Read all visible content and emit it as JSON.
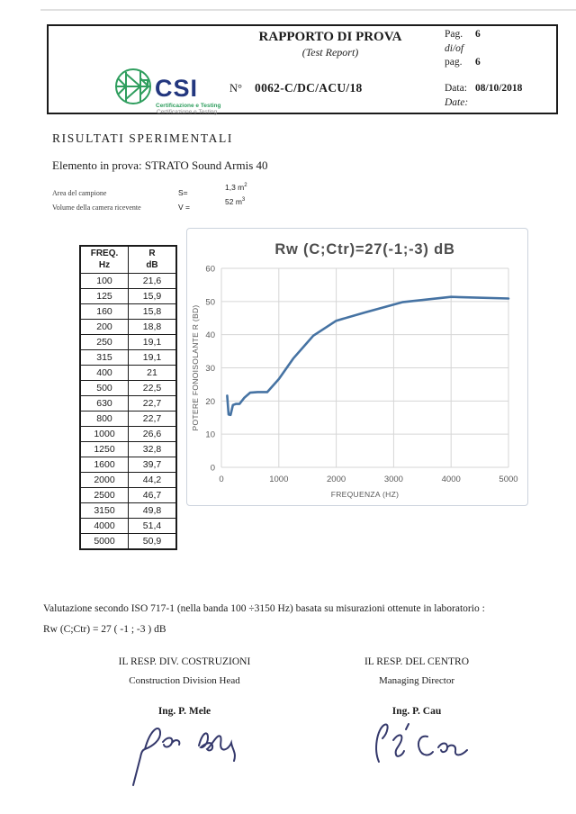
{
  "header": {
    "logo": {
      "brand": "CSI",
      "tagline1": "Certificazione e Testing",
      "tagline2": "Certificazione  e Testing"
    },
    "title": "RAPPORTO DI PROVA",
    "subtitle": "(Test Report)",
    "number_label": "N°",
    "number": "0062-C/DC/ACU/18",
    "pag_label": "Pag.",
    "pag_value": "6",
    "diof_label": "di/of",
    "pag2_label": "pag.",
    "pag2_value": "6",
    "data_label": "Data:",
    "data_value": "08/10/2018",
    "date_label": "Date:"
  },
  "section": {
    "heading": "RISULTATI SPERIMENTALI",
    "element_line": "Elemento in prova: STRATO Sound Armis 40",
    "area_label": "Area del campione",
    "area_symbol": "S=",
    "area_value": "1,3 m",
    "area_sup": "2",
    "volume_label": "Volume della camera ricevente",
    "volume_symbol": "V =",
    "volume_value": "52 m",
    "volume_sup": "3"
  },
  "table": {
    "col1_header": [
      "FREQ.",
      "Hz"
    ],
    "col2_header": [
      "R",
      "dB"
    ],
    "rows": [
      [
        "100",
        "21,6"
      ],
      [
        "125",
        "15,9"
      ],
      [
        "160",
        "15,8"
      ],
      [
        "200",
        "18,8"
      ],
      [
        "250",
        "19,1"
      ],
      [
        "315",
        "19,1"
      ],
      [
        "400",
        "21"
      ],
      [
        "500",
        "22,5"
      ],
      [
        "630",
        "22,7"
      ],
      [
        "800",
        "22,7"
      ],
      [
        "1000",
        "26,6"
      ],
      [
        "1250",
        "32,8"
      ],
      [
        "1600",
        "39,7"
      ],
      [
        "2000",
        "44,2"
      ],
      [
        "2500",
        "46,7"
      ],
      [
        "3150",
        "49,8"
      ],
      [
        "4000",
        "51,4"
      ],
      [
        "5000",
        "50,9"
      ]
    ]
  },
  "chart_data": {
    "type": "line",
    "title": "Rw (C;Ctr)=27(-1;-3) dB",
    "xlabel": "FREQUENZA (HZ)",
    "ylabel": "POTERE FONOISOLANTE R (BD)",
    "x": [
      100,
      125,
      160,
      200,
      250,
      315,
      400,
      500,
      630,
      800,
      1000,
      1250,
      1600,
      2000,
      2500,
      3150,
      4000,
      5000
    ],
    "series": [
      {
        "name": "R",
        "values": [
          21.6,
          15.9,
          15.8,
          18.8,
          19.1,
          19.1,
          21,
          22.5,
          22.7,
          22.7,
          26.6,
          32.8,
          39.7,
          44.2,
          46.7,
          49.8,
          51.4,
          50.9
        ]
      }
    ],
    "xlim": [
      0,
      5000
    ],
    "ylim": [
      0,
      60
    ],
    "x_ticks": [
      0,
      1000,
      2000,
      3000,
      4000,
      5000
    ],
    "y_ticks": [
      0,
      10,
      20,
      30,
      40,
      50,
      60
    ],
    "grid": true,
    "legend": false,
    "line_color": "#4673a3"
  },
  "footer": {
    "valutazione": "Valutazione secondo ISO 717-1 (nella banda 100 ÷3150 Hz) basata su misurazioni ottenute in laboratorio :",
    "rating": "Rw (C;Ctr) = 27 ( -1 ; -3 ) dB"
  },
  "signatures": {
    "left": {
      "role_it": "IL RESP. DIV. COSTRUZIONI",
      "role_en": "Construction Division Head",
      "name": "Ing. P. Mele"
    },
    "right": {
      "role_it": "IL RESP. DEL CENTRO",
      "role_en": "Managing Director",
      "name": "Ing. P. Cau"
    }
  },
  "colors": {
    "line": "#4673a3",
    "logo_green": "#2f9e5e",
    "brand_navy": "#23377f",
    "ink": "#34386b"
  }
}
